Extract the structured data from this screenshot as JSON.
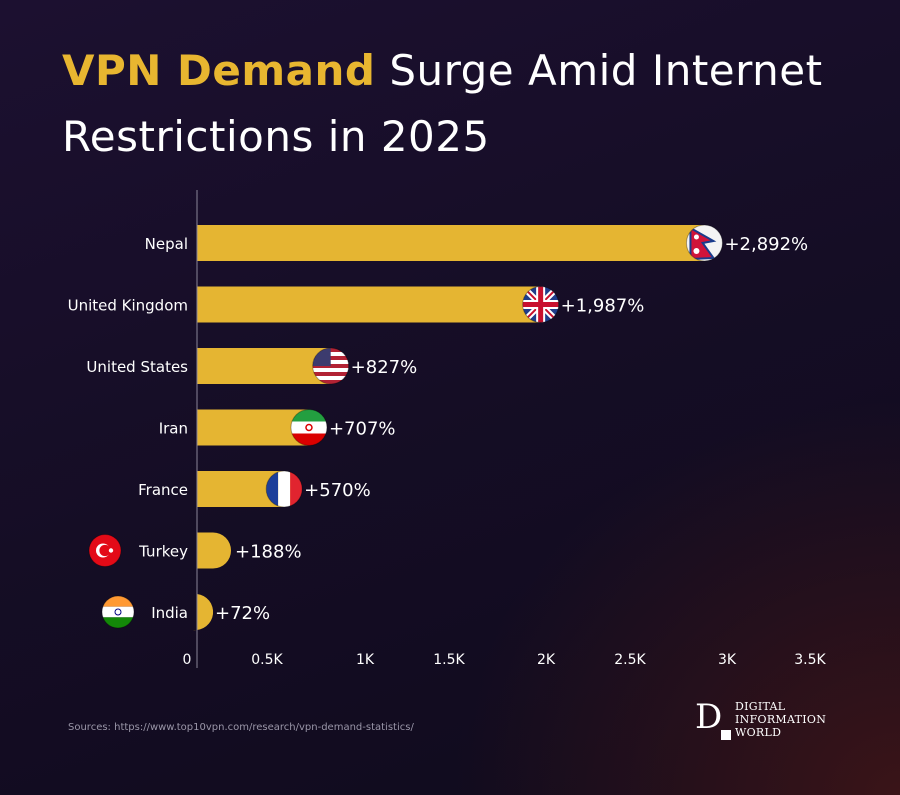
{
  "title": {
    "highlight": "VPN Demand",
    "rest": " Surge Amid Internet Restrictions in 2025"
  },
  "colors": {
    "bar": "#e5b532",
    "highlight": "#e8b630",
    "axis": "#8a8598"
  },
  "chart_data": {
    "type": "bar",
    "orientation": "horizontal",
    "categories": [
      "Nepal",
      "United Kingdom",
      "United States",
      "Iran",
      "France",
      "Turkey",
      "India"
    ],
    "values": [
      2892,
      1987,
      827,
      707,
      570,
      188,
      72
    ],
    "labels": [
      "+2,892%",
      "+1,987%",
      "+827%",
      "+707%",
      "+570%",
      "+188%",
      "+72%"
    ],
    "flags": [
      "nepal-flag",
      "uk-flag",
      "us-flag",
      "iran-flag",
      "france-flag",
      "turkey-flag",
      "india-flag"
    ],
    "xlim": [
      0,
      3500
    ],
    "xticks": [
      0,
      500,
      1000,
      1500,
      2000,
      2500,
      3000,
      3500
    ],
    "xtick_labels": [
      "0",
      "0.5K",
      "1K",
      "1.5K",
      "2K",
      "2.5K",
      "3K",
      "3.5K"
    ],
    "grid": false
  },
  "source": "Sources: https://www.top10vpn.com/research/vpn-demand-statistics/",
  "logo": {
    "lines": [
      "DIGITAL",
      "INFORMATION",
      "WORLD"
    ]
  }
}
